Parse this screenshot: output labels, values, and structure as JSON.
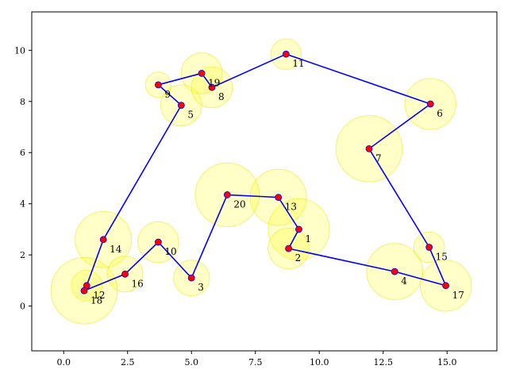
{
  "chart_data": {
    "type": "scatter",
    "title": "",
    "xlabel": "",
    "ylabel": "",
    "xlim": [
      -1.25,
      16.95
    ],
    "ylim": [
      -1.75,
      11.5
    ],
    "xticks": [
      "0.0",
      "2.5",
      "5.0",
      "7.5",
      "10.0",
      "12.5",
      "15.0"
    ],
    "xtick_values": [
      0,
      2.5,
      5,
      7.5,
      10,
      12.5,
      15
    ],
    "yticks": [
      "0",
      "2",
      "4",
      "6",
      "8",
      "10"
    ],
    "ytick_values": [
      0,
      2,
      4,
      6,
      8,
      10
    ],
    "grid": false,
    "colors": {
      "route": "#0000ff",
      "point": "#ff0000",
      "circle_fill": "#ffff00",
      "circle_edge": "#e6e600"
    },
    "points": [
      {
        "id": "1",
        "x": 9.2,
        "y": 3.0,
        "r": 1.2
      },
      {
        "id": "2",
        "x": 8.8,
        "y": 2.25,
        "r": 0.8
      },
      {
        "id": "3",
        "x": 5.0,
        "y": 1.1,
        "r": 0.7
      },
      {
        "id": "4",
        "x": 12.95,
        "y": 1.35,
        "r": 1.1
      },
      {
        "id": "5",
        "x": 4.6,
        "y": 7.85,
        "r": 0.8
      },
      {
        "id": "6",
        "x": 14.35,
        "y": 7.9,
        "r": 1.0
      },
      {
        "id": "7",
        "x": 11.95,
        "y": 6.15,
        "r": 1.3
      },
      {
        "id": "8",
        "x": 5.8,
        "y": 8.55,
        "r": 0.8
      },
      {
        "id": "9",
        "x": 3.7,
        "y": 8.65,
        "r": 0.5
      },
      {
        "id": "10",
        "x": 3.7,
        "y": 2.5,
        "r": 0.8
      },
      {
        "id": "11",
        "x": 8.7,
        "y": 9.85,
        "r": 0.6
      },
      {
        "id": "12",
        "x": 0.9,
        "y": 0.8,
        "r": 0.6
      },
      {
        "id": "13",
        "x": 8.4,
        "y": 4.25,
        "r": 1.1
      },
      {
        "id": "14",
        "x": 1.55,
        "y": 2.6,
        "r": 1.1
      },
      {
        "id": "15",
        "x": 14.3,
        "y": 2.3,
        "r": 0.6
      },
      {
        "id": "16",
        "x": 2.4,
        "y": 1.25,
        "r": 0.7
      },
      {
        "id": "17",
        "x": 14.95,
        "y": 0.8,
        "r": 1.0
      },
      {
        "id": "18",
        "x": 0.8,
        "y": 0.6,
        "r": 1.3
      },
      {
        "id": "19",
        "x": 5.4,
        "y": 9.1,
        "r": 0.8
      },
      {
        "id": "20",
        "x": 6.4,
        "y": 4.35,
        "r": 1.25
      }
    ],
    "route": [
      "18",
      "12",
      "14",
      "5",
      "9",
      "19",
      "8",
      "11",
      "6",
      "7",
      "15",
      "17",
      "4",
      "2",
      "1",
      "13",
      "20",
      "3",
      "10",
      "16",
      "18"
    ]
  }
}
